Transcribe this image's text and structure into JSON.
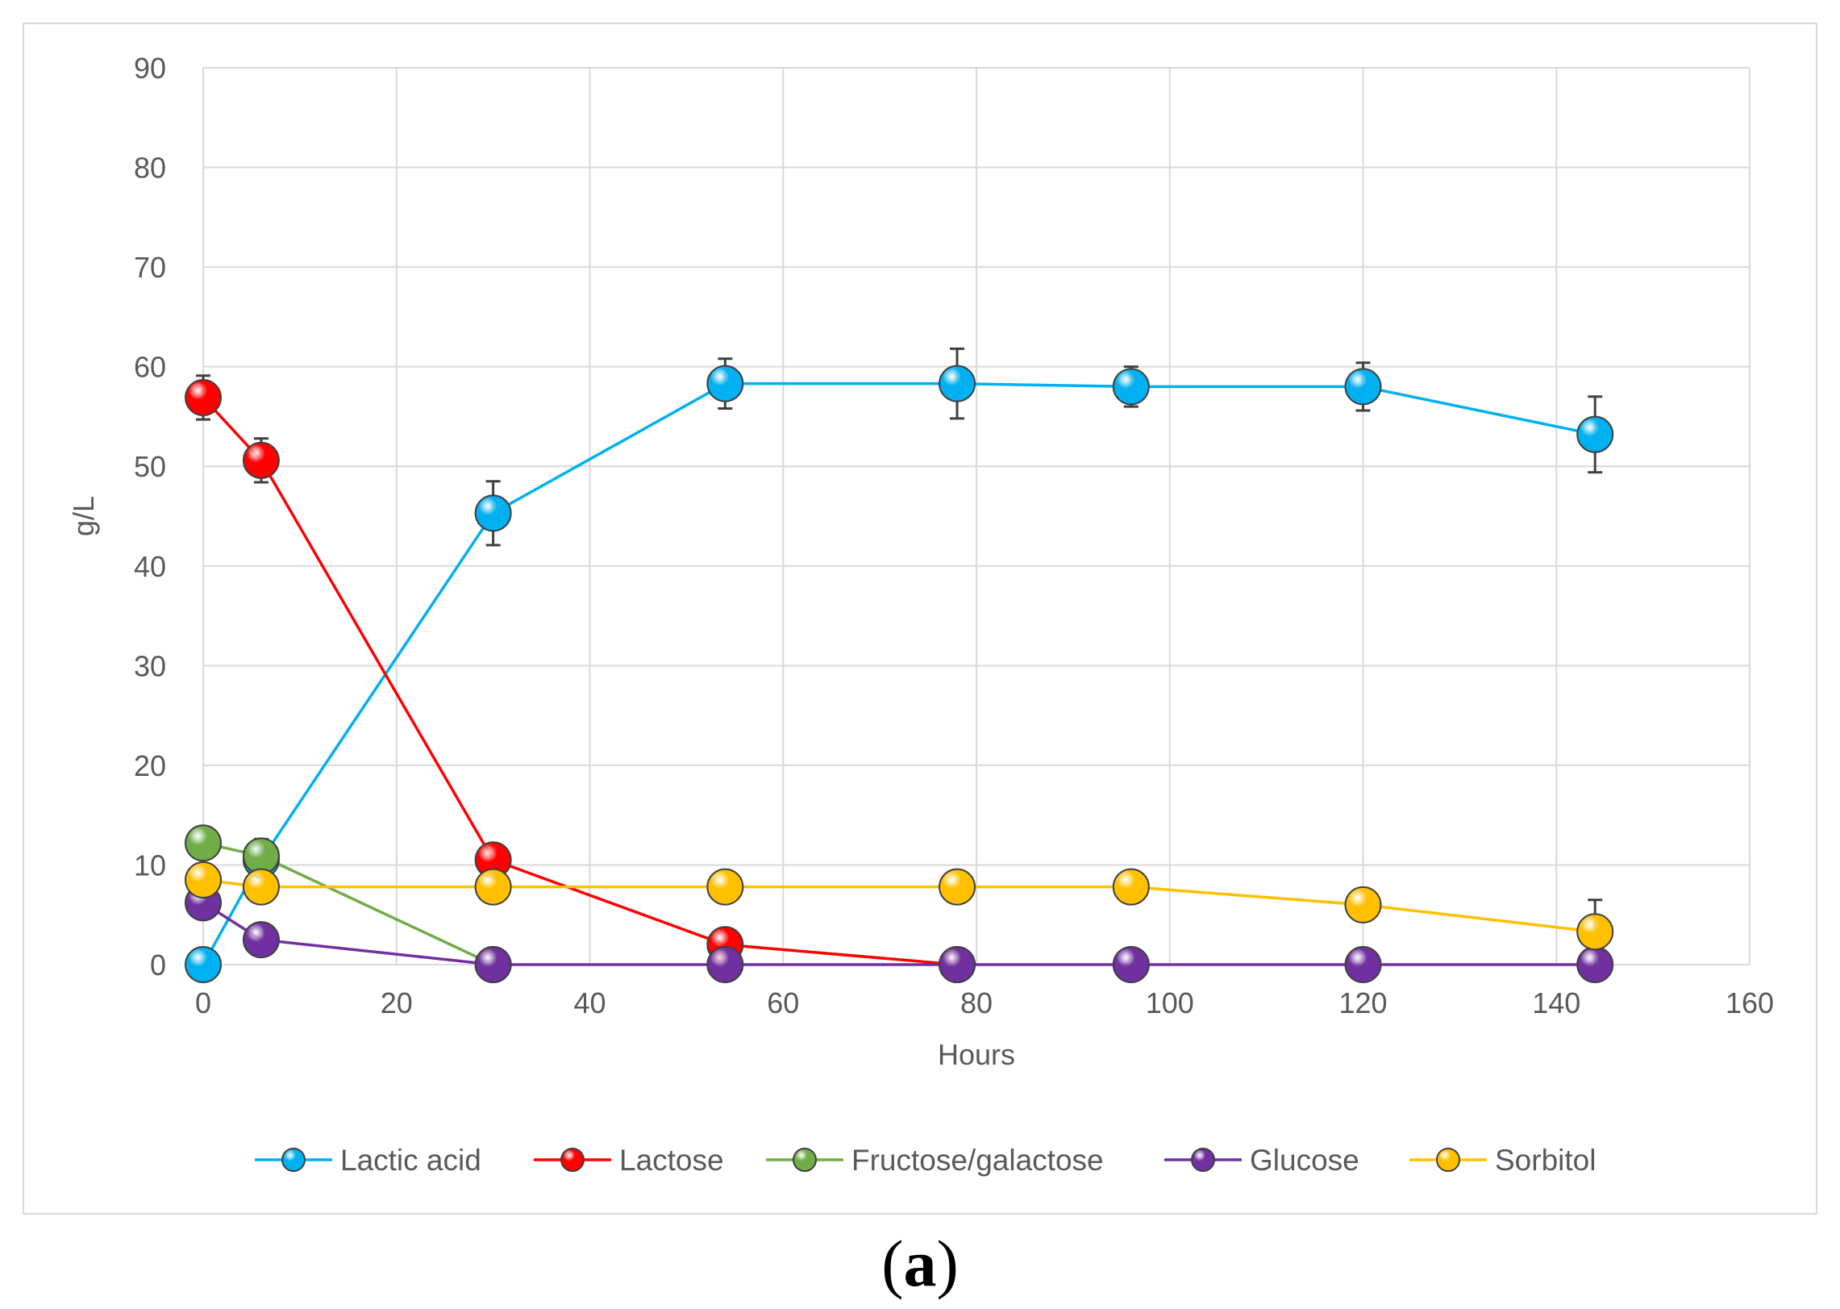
{
  "chart_data": {
    "type": "line",
    "title": "",
    "xlabel": "Hours",
    "ylabel": "g/L",
    "xlim": [
      0,
      160
    ],
    "ylim": [
      0,
      90
    ],
    "xticks": [
      0,
      20,
      40,
      60,
      80,
      100,
      120,
      140,
      160
    ],
    "yticks": [
      0,
      10,
      20,
      30,
      40,
      50,
      60,
      70,
      80,
      90
    ],
    "grid": true,
    "legend_position": "bottom",
    "series": [
      {
        "name": "Lactic acid",
        "color": "#00b0f0",
        "x": [
          0,
          6,
          30,
          54,
          78,
          96,
          120,
          144
        ],
        "y": [
          0,
          10.5,
          45.3,
          58.3,
          58.3,
          58.0,
          58.0,
          53.2
        ],
        "err": [
          0,
          0,
          3.2,
          2.5,
          3.5,
          2.0,
          2.4,
          3.8
        ]
      },
      {
        "name": "Lactose",
        "color": "#ff0000",
        "x": [
          0,
          6,
          30,
          54,
          78
        ],
        "y": [
          56.9,
          50.6,
          10.5,
          2.0,
          0
        ],
        "err": [
          2.2,
          2.2,
          0,
          0,
          0
        ]
      },
      {
        "name": "Fructose/galactose",
        "color": "#70ad47",
        "x": [
          0,
          6,
          30
        ],
        "y": [
          12.2,
          10.9,
          0
        ],
        "err": [
          0,
          1.7,
          0
        ]
      },
      {
        "name": "Glucose",
        "color": "#7030a0",
        "x": [
          0,
          6,
          30,
          54,
          78,
          96,
          120,
          144
        ],
        "y": [
          6.2,
          2.5,
          0,
          0,
          0,
          0,
          0,
          0
        ],
        "err": [
          0,
          0,
          0,
          0,
          0,
          0,
          0,
          0
        ]
      },
      {
        "name": "Sorbitol",
        "color": "#ffc000",
        "x": [
          0,
          6,
          30,
          54,
          78,
          96,
          120,
          144
        ],
        "y": [
          8.5,
          7.8,
          7.8,
          7.8,
          7.8,
          7.8,
          6.0,
          3.3
        ],
        "err": [
          0,
          0,
          0,
          0,
          0,
          0,
          0,
          3.2
        ]
      }
    ]
  },
  "caption": {
    "open": "(",
    "letter": "a",
    "close": ")"
  }
}
